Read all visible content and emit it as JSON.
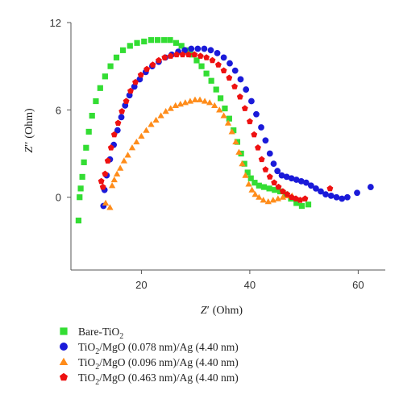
{
  "chart_data": {
    "type": "scatter",
    "title": "",
    "xlabel": {
      "main": "Z",
      "prime": "′",
      "unit": "(Ohm)"
    },
    "ylabel": {
      "main": "Z",
      "prime": "′′",
      "unit": "(Ohm)"
    },
    "xlim": [
      7,
      65
    ],
    "ylim": [
      -5,
      12
    ],
    "xticks": [
      20,
      40,
      60
    ],
    "yticks": [
      0,
      6,
      12
    ],
    "grid": false,
    "legend_position": "bottom",
    "series": [
      {
        "name": "Bare-TiO",
        "name_sub": "2",
        "name_rest": "",
        "marker": "square",
        "color": "#33dd33",
        "points": [
          [
            8.4,
            -1.6
          ],
          [
            8.6,
            0.0
          ],
          [
            8.8,
            0.6
          ],
          [
            9.1,
            1.4
          ],
          [
            9.4,
            2.4
          ],
          [
            9.8,
            3.4
          ],
          [
            10.3,
            4.5
          ],
          [
            10.9,
            5.6
          ],
          [
            11.6,
            6.6
          ],
          [
            12.4,
            7.5
          ],
          [
            13.3,
            8.3
          ],
          [
            14.3,
            9.0
          ],
          [
            15.4,
            9.6
          ],
          [
            16.6,
            10.1
          ],
          [
            17.9,
            10.4
          ],
          [
            19.2,
            10.6
          ],
          [
            20.5,
            10.7
          ],
          [
            21.8,
            10.8
          ],
          [
            23.0,
            10.8
          ],
          [
            24.2,
            10.8
          ],
          [
            25.3,
            10.8
          ],
          [
            26.4,
            10.6
          ],
          [
            27.4,
            10.4
          ],
          [
            28.4,
            10.1
          ],
          [
            29.3,
            9.8
          ],
          [
            30.2,
            9.4
          ],
          [
            31.1,
            9.0
          ],
          [
            32.0,
            8.5
          ],
          [
            32.9,
            8.0
          ],
          [
            33.8,
            7.4
          ],
          [
            34.6,
            6.8
          ],
          [
            35.4,
            6.1
          ],
          [
            36.2,
            5.4
          ],
          [
            37.0,
            4.6
          ],
          [
            37.7,
            3.8
          ],
          [
            38.4,
            3.0
          ],
          [
            39.0,
            2.3
          ],
          [
            39.6,
            1.7
          ],
          [
            40.2,
            1.3
          ],
          [
            40.9,
            1.0
          ],
          [
            41.7,
            0.8
          ],
          [
            42.6,
            0.7
          ],
          [
            43.6,
            0.6
          ],
          [
            44.6,
            0.5
          ],
          [
            45.6,
            0.4
          ],
          [
            46.6,
            0.2
          ],
          [
            47.6,
            -0.1
          ],
          [
            48.6,
            -0.4
          ],
          [
            49.6,
            -0.6
          ],
          [
            50.8,
            -0.5
          ]
        ]
      },
      {
        "name": "TiO",
        "name_sub": "2",
        "name_rest": "/MgO (0.078 nm)/Ag (4.40 nm)",
        "marker": "circle",
        "color": "#1a1ad9",
        "points": [
          [
            13.0,
            -0.6
          ],
          [
            13.2,
            0.5
          ],
          [
            13.6,
            1.5
          ],
          [
            14.2,
            2.6
          ],
          [
            14.9,
            3.6
          ],
          [
            15.6,
            4.6
          ],
          [
            16.3,
            5.5
          ],
          [
            17.0,
            6.3
          ],
          [
            17.8,
            7.0
          ],
          [
            18.7,
            7.6
          ],
          [
            19.7,
            8.1
          ],
          [
            20.8,
            8.6
          ],
          [
            22.0,
            9.0
          ],
          [
            23.2,
            9.3
          ],
          [
            24.4,
            9.6
          ],
          [
            25.6,
            9.8
          ],
          [
            26.8,
            10.0
          ],
          [
            28.0,
            10.1
          ],
          [
            29.2,
            10.2
          ],
          [
            30.4,
            10.2
          ],
          [
            31.6,
            10.2
          ],
          [
            32.8,
            10.1
          ],
          [
            34.0,
            9.9
          ],
          [
            35.2,
            9.6
          ],
          [
            36.3,
            9.2
          ],
          [
            37.3,
            8.7
          ],
          [
            38.3,
            8.1
          ],
          [
            39.3,
            7.4
          ],
          [
            40.3,
            6.6
          ],
          [
            41.2,
            5.7
          ],
          [
            42.1,
            4.8
          ],
          [
            42.9,
            3.9
          ],
          [
            43.7,
            3.0
          ],
          [
            44.4,
            2.3
          ],
          [
            45.1,
            1.8
          ],
          [
            45.9,
            1.5
          ],
          [
            46.8,
            1.4
          ],
          [
            47.7,
            1.3
          ],
          [
            48.6,
            1.2
          ],
          [
            49.5,
            1.1
          ],
          [
            50.4,
            1.0
          ],
          [
            51.3,
            0.8
          ],
          [
            52.2,
            0.6
          ],
          [
            53.1,
            0.4
          ],
          [
            54.0,
            0.2
          ],
          [
            55.0,
            0.1
          ],
          [
            56.0,
            0.0
          ],
          [
            57.0,
            -0.1
          ],
          [
            58.0,
            0.0
          ],
          [
            59.8,
            0.3
          ],
          [
            62.3,
            0.7
          ]
        ]
      },
      {
        "name": "TiO",
        "name_sub": "2",
        "name_rest": "/MgO (0.096 nm)/Ag (4.40 nm)",
        "marker": "triangle",
        "color": "#ff8c1a",
        "points": [
          [
            13.4,
            -0.4
          ],
          [
            14.2,
            -0.7
          ],
          [
            14.6,
            0.8
          ],
          [
            15.0,
            1.2
          ],
          [
            15.5,
            1.6
          ],
          [
            16.1,
            2.0
          ],
          [
            16.8,
            2.5
          ],
          [
            17.5,
            2.9
          ],
          [
            18.3,
            3.4
          ],
          [
            19.1,
            3.8
          ],
          [
            20.0,
            4.2
          ],
          [
            20.9,
            4.6
          ],
          [
            21.8,
            5.0
          ],
          [
            22.7,
            5.3
          ],
          [
            23.6,
            5.6
          ],
          [
            24.5,
            5.9
          ],
          [
            25.4,
            6.1
          ],
          [
            26.3,
            6.3
          ],
          [
            27.2,
            6.4
          ],
          [
            28.1,
            6.5
          ],
          [
            29.0,
            6.6
          ],
          [
            29.9,
            6.7
          ],
          [
            30.8,
            6.7
          ],
          [
            31.7,
            6.6
          ],
          [
            32.6,
            6.5
          ],
          [
            33.5,
            6.3
          ],
          [
            34.4,
            6.0
          ],
          [
            35.2,
            5.6
          ],
          [
            36.0,
            5.1
          ],
          [
            36.7,
            4.5
          ],
          [
            37.4,
            3.8
          ],
          [
            38.0,
            3.1
          ],
          [
            38.6,
            2.3
          ],
          [
            39.2,
            1.5
          ],
          [
            39.8,
            0.9
          ],
          [
            40.4,
            0.5
          ],
          [
            41.0,
            0.2
          ],
          [
            41.7,
            0.0
          ],
          [
            42.5,
            -0.2
          ],
          [
            43.4,
            -0.3
          ],
          [
            44.3,
            -0.2
          ],
          [
            45.2,
            -0.1
          ],
          [
            46.1,
            0.0
          ],
          [
            47.0,
            0.1
          ],
          [
            47.8,
            0.1
          ]
        ]
      },
      {
        "name": "TiO",
        "name_sub": "2",
        "name_rest": "/MgO (0.463 nm)/Ag (4.40 nm)",
        "marker": "pentagon",
        "color": "#ee1111",
        "points": [
          [
            12.6,
            1.1
          ],
          [
            12.9,
            0.7
          ],
          [
            13.3,
            1.6
          ],
          [
            13.8,
            2.5
          ],
          [
            14.4,
            3.4
          ],
          [
            15.0,
            4.3
          ],
          [
            15.7,
            5.1
          ],
          [
            16.4,
            5.9
          ],
          [
            17.2,
            6.6
          ],
          [
            18.0,
            7.3
          ],
          [
            18.9,
            7.9
          ],
          [
            19.9,
            8.4
          ],
          [
            21.0,
            8.8
          ],
          [
            22.1,
            9.1
          ],
          [
            23.2,
            9.4
          ],
          [
            24.3,
            9.6
          ],
          [
            25.4,
            9.7
          ],
          [
            26.5,
            9.8
          ],
          [
            27.6,
            9.8
          ],
          [
            28.7,
            9.8
          ],
          [
            29.8,
            9.8
          ],
          [
            30.9,
            9.7
          ],
          [
            32.0,
            9.6
          ],
          [
            33.1,
            9.4
          ],
          [
            34.2,
            9.1
          ],
          [
            35.2,
            8.7
          ],
          [
            36.2,
            8.2
          ],
          [
            37.2,
            7.6
          ],
          [
            38.2,
            6.9
          ],
          [
            39.1,
            6.1
          ],
          [
            40.0,
            5.2
          ],
          [
            40.8,
            4.3
          ],
          [
            41.5,
            3.4
          ],
          [
            42.2,
            2.6
          ],
          [
            42.9,
            1.9
          ],
          [
            43.7,
            1.4
          ],
          [
            44.5,
            1.0
          ],
          [
            45.3,
            0.7
          ],
          [
            46.1,
            0.4
          ],
          [
            46.9,
            0.2
          ],
          [
            47.7,
            0.0
          ],
          [
            48.5,
            -0.1
          ],
          [
            49.3,
            -0.2
          ],
          [
            50.2,
            -0.1
          ],
          [
            54.8,
            0.6
          ]
        ]
      }
    ]
  }
}
